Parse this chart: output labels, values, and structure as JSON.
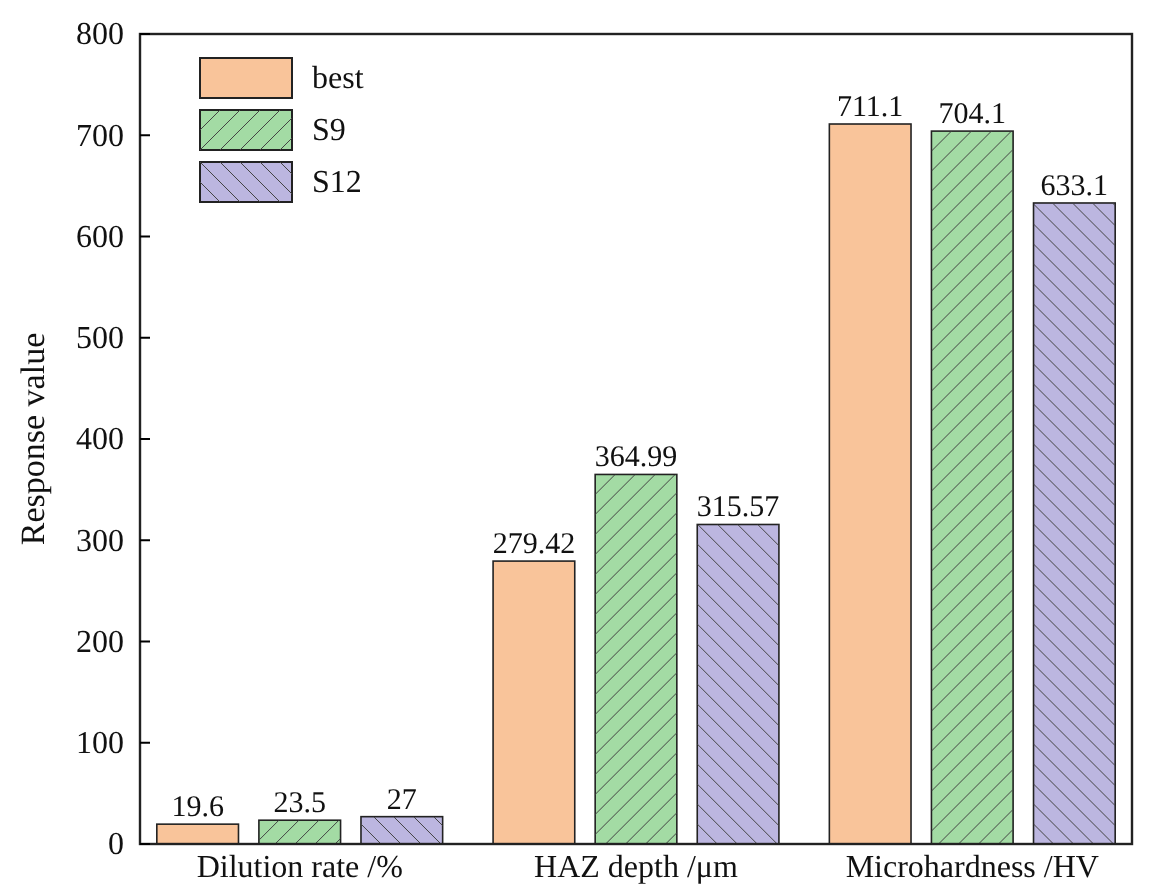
{
  "chart_data": {
    "type": "bar",
    "ylabel": "Response value",
    "categories": [
      "Dilution rate /%",
      "HAZ depth /μm",
      "Microhardness /HV"
    ],
    "series": [
      {
        "name": "best",
        "color": "#f9c49a",
        "values": [
          19.6,
          279.42,
          711.1
        ],
        "value_labels": [
          "19.6",
          "279.42",
          "711.1"
        ]
      },
      {
        "name": "S9",
        "color": "#a3dba4",
        "values": [
          23.5,
          364.99,
          704.1
        ],
        "value_labels": [
          "23.5",
          "364.99",
          "704.1"
        ]
      },
      {
        "name": "S12",
        "color": "#bcb6e0",
        "values": [
          27,
          315.57,
          633.1
        ],
        "value_labels": [
          "27",
          "315.57",
          "633.1"
        ]
      }
    ],
    "ylim": [
      0,
      800
    ],
    "yticks": [
      0,
      100,
      200,
      300,
      400,
      500,
      600,
      700,
      800
    ],
    "legend": "top left"
  }
}
